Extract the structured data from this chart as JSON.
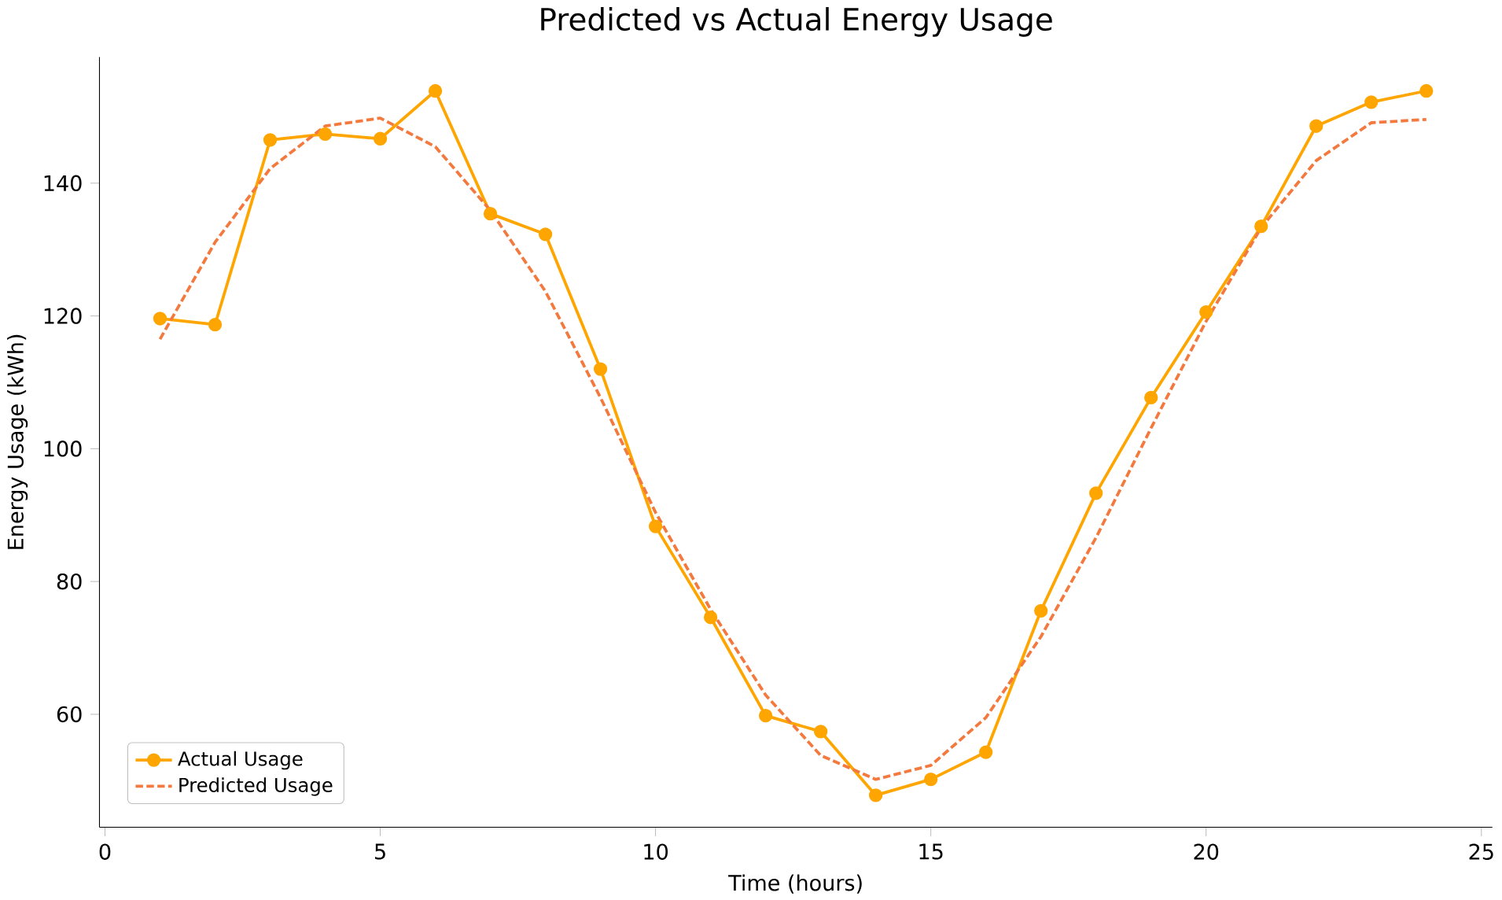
{
  "chart_data": {
    "type": "line",
    "title": "Predicted vs Actual Energy Usage",
    "xlabel": "Time (hours)",
    "ylabel": "Energy Usage (kWh)",
    "x": [
      1,
      2,
      3,
      4,
      5,
      6,
      7,
      8,
      9,
      10,
      11,
      12,
      13,
      14,
      15,
      16,
      17,
      18,
      19,
      20,
      21,
      22,
      23,
      24
    ],
    "series": [
      {
        "name": "Actual Usage",
        "color": "#ffa500",
        "marker": "circle",
        "line_style": "solid",
        "values": [
          119.6,
          118.7,
          146.5,
          147.4,
          146.7,
          153.9,
          135.4,
          132.3,
          112,
          88.3,
          74.6,
          59.8,
          57.4,
          47.8,
          50.2,
          54.3,
          75.6,
          93.3,
          107.7,
          120.6,
          133.5,
          148.6,
          152.2,
          153.9
        ]
      },
      {
        "name": "Predicted Usage",
        "color": "#f4793e",
        "marker": "none",
        "line_style": "dashed",
        "values": [
          116.5,
          131.1,
          142.2,
          148.6,
          149.8,
          145.5,
          135.9,
          123.7,
          107.7,
          90.4,
          75.8,
          62.9,
          53.8,
          50.2,
          52.3,
          59.5,
          71.7,
          86.6,
          103.1,
          119.2,
          133.3,
          143.4,
          149.1,
          149.6
        ]
      }
    ],
    "xlim": [
      -0.1,
      25.2
    ],
    "ylim": [
      43,
      159
    ],
    "xticks": [
      0,
      5,
      10,
      15,
      20,
      25
    ],
    "yticks": [
      60,
      80,
      100,
      120,
      140
    ],
    "grid": false,
    "legend": "bottom left"
  }
}
